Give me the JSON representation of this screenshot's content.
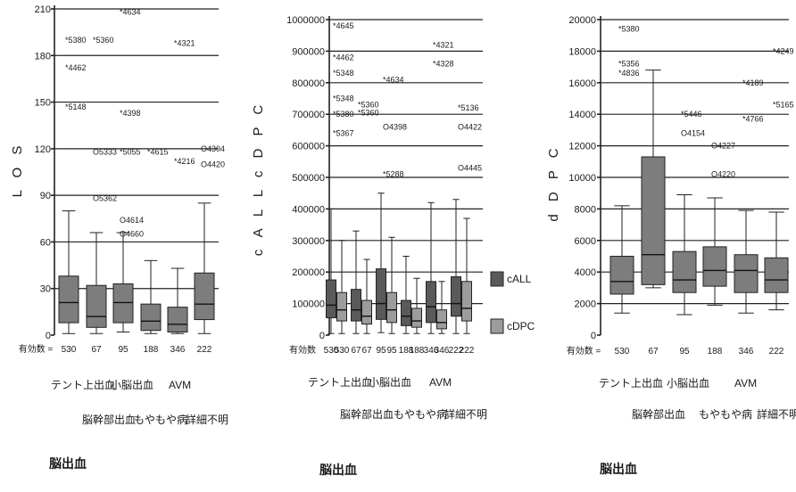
{
  "fill_colors": {
    "single": "#7d7d7d",
    "c_all": "#5a5a5a",
    "c_dpc": "#9c9c9c"
  },
  "chart_data": [
    {
      "type": "box",
      "ylabel": "L O S",
      "yticks": [
        0,
        30,
        60,
        90,
        120,
        150,
        180,
        210
      ],
      "ylim": [
        0,
        210
      ],
      "grid": "horizontal",
      "n_label": "有効数 =",
      "n_values": [
        "530",
        "67",
        "95",
        "188",
        "346",
        "222"
      ],
      "group_labels_row1": [
        "テント上出血",
        "小脳出血",
        "AVM"
      ],
      "group_labels_row2": [
        "脳幹部出血",
        "もやもや病",
        "詳細不明"
      ],
      "footer": "脳出血",
      "boxes": [
        {
          "min": 1,
          "q1": 8,
          "median": 21,
          "q3": 38,
          "max": 80
        },
        {
          "min": 1,
          "q1": 5,
          "median": 12,
          "q3": 32,
          "max": 66
        },
        {
          "min": 2,
          "q1": 8,
          "median": 21,
          "q3": 33,
          "max": 66
        },
        {
          "min": 1,
          "q1": 3,
          "median": 9,
          "q3": 20,
          "max": 48
        },
        {
          "min": 1,
          "q1": 2,
          "median": 7,
          "q3": 18,
          "max": 43
        },
        {
          "min": 1,
          "q1": 10,
          "median": 20,
          "q3": 40,
          "max": 85
        }
      ],
      "labeled_outliers": [
        {
          "cat": 0,
          "value": 190,
          "label": "*5380"
        },
        {
          "cat": 0,
          "value": 172,
          "label": "*4462"
        },
        {
          "cat": 0,
          "value": 147,
          "label": "*5148"
        },
        {
          "cat": 1,
          "value": 190,
          "label": "*5360"
        },
        {
          "cat": 1,
          "value": 118,
          "label": "O5333"
        },
        {
          "cat": 1,
          "value": 88,
          "label": "O5362"
        },
        {
          "cat": 2,
          "value": 208,
          "label": "*4634"
        },
        {
          "cat": 2,
          "value": 143,
          "label": "*4398"
        },
        {
          "cat": 2,
          "value": 118,
          "label": "*5055"
        },
        {
          "cat": 2,
          "value": 74,
          "label": "O4614"
        },
        {
          "cat": 2,
          "value": 65,
          "label": "O4660"
        },
        {
          "cat": 3,
          "value": 118,
          "label": "*4615"
        },
        {
          "cat": 4,
          "value": 188,
          "label": "*4321"
        },
        {
          "cat": 4,
          "value": 112,
          "label": "*4216"
        },
        {
          "cat": 5,
          "value": 120,
          "label": "O4304"
        },
        {
          "cat": 5,
          "value": 110,
          "label": "O4420"
        }
      ]
    },
    {
      "type": "box",
      "ylabel": "c A L L  c D P C",
      "yticks": [
        0,
        100000,
        200000,
        300000,
        400000,
        500000,
        600000,
        700000,
        800000,
        900000,
        1000000
      ],
      "ytick_labels": [
        "0",
        "100000",
        "200000",
        "300000",
        "400000",
        "500000",
        "600000",
        "700000",
        "800000",
        "900000",
        "1000000"
      ],
      "ylim": [
        0,
        1000000
      ],
      "grid": "horizontal",
      "n_label": "有効数",
      "n_values": [
        "530",
        "530",
        "67",
        "67",
        "95",
        "95",
        "188",
        "188",
        "346",
        "346",
        "222",
        "222"
      ],
      "group_labels_row1": [
        "テント上出血",
        "小脳出血",
        "AVM"
      ],
      "group_labels_row2": [
        "脳幹部出血",
        "もやもや病",
        "詳細不明"
      ],
      "legend": [
        {
          "name": "cALL",
          "color": "#5a5a5a"
        },
        {
          "name": "cDPC",
          "color": "#9c9c9c"
        }
      ],
      "legend_placement": "right",
      "footer": "脳出血",
      "series": [
        {
          "name": "cALL",
          "boxes": [
            {
              "min": 5000,
              "q1": 55000,
              "median": 95000,
              "q3": 175000,
              "max": 400000
            },
            {
              "min": 5000,
              "q1": 45000,
              "median": 80000,
              "q3": 145000,
              "max": 330000
            },
            {
              "min": 8000,
              "q1": 50000,
              "median": 100000,
              "q3": 210000,
              "max": 450000
            },
            {
              "min": 5000,
              "q1": 30000,
              "median": 60000,
              "q3": 110000,
              "max": 250000
            },
            {
              "min": 5000,
              "q1": 40000,
              "median": 90000,
              "q3": 170000,
              "max": 420000
            },
            {
              "min": 5000,
              "q1": 60000,
              "median": 100000,
              "q3": 185000,
              "max": 430000
            }
          ]
        },
        {
          "name": "cDPC",
          "boxes": [
            {
              "min": 5000,
              "q1": 45000,
              "median": 80000,
              "q3": 135000,
              "max": 300000
            },
            {
              "min": 5000,
              "q1": 35000,
              "median": 60000,
              "q3": 110000,
              "max": 240000
            },
            {
              "min": 5000,
              "q1": 40000,
              "median": 80000,
              "q3": 135000,
              "max": 310000
            },
            {
              "min": 5000,
              "q1": 25000,
              "median": 45000,
              "q3": 85000,
              "max": 180000
            },
            {
              "min": 5000,
              "q1": 20000,
              "median": 40000,
              "q3": 80000,
              "max": 170000
            },
            {
              "min": 5000,
              "q1": 45000,
              "median": 85000,
              "q3": 170000,
              "max": 370000
            }
          ]
        }
      ],
      "labeled_outliers": [
        {
          "cat": 0,
          "value": 980000,
          "label": "*4645"
        },
        {
          "cat": 0,
          "value": 880000,
          "label": "*4462"
        },
        {
          "cat": 0,
          "value": 830000,
          "label": "*5348"
        },
        {
          "cat": 0,
          "value": 750000,
          "label": "*5348"
        },
        {
          "cat": 0,
          "value": 700000,
          "label": "*5380"
        },
        {
          "cat": 0,
          "value": 640000,
          "label": "*5367"
        },
        {
          "cat": 1,
          "value": 730000,
          "label": "*5360"
        },
        {
          "cat": 1,
          "value": 705000,
          "label": "*5360"
        },
        {
          "cat": 2,
          "value": 810000,
          "label": "*4634"
        },
        {
          "cat": 2,
          "value": 660000,
          "label": "O4398"
        },
        {
          "cat": 2,
          "value": 510000,
          "label": "*5288"
        },
        {
          "cat": 4,
          "value": 920000,
          "label": "*4321"
        },
        {
          "cat": 4,
          "value": 860000,
          "label": "*4328"
        },
        {
          "cat": 5,
          "value": 720000,
          "label": "*5136"
        },
        {
          "cat": 5,
          "value": 660000,
          "label": "O4422"
        },
        {
          "cat": 5,
          "value": 530000,
          "label": "O4445"
        }
      ]
    },
    {
      "type": "box",
      "ylabel": "d D P C",
      "yticks": [
        0,
        2000,
        4000,
        6000,
        8000,
        10000,
        12000,
        14000,
        16000,
        18000,
        20000
      ],
      "ylim": [
        0,
        20000
      ],
      "grid": "horizontal",
      "n_label": "有効数 =",
      "n_values": [
        "530",
        "67",
        "95",
        "188",
        "346",
        "222"
      ],
      "group_labels_row1": [
        "テント上出血",
        "小脳出血",
        "AVM"
      ],
      "group_labels_row2": [
        "脳幹部出血",
        "もやもや病",
        "詳細不明"
      ],
      "footer": "脳出血",
      "boxes": [
        {
          "min": 1400,
          "q1": 2600,
          "median": 3400,
          "q3": 5000,
          "max": 8200
        },
        {
          "min": 3000,
          "q1": 3200,
          "median": 5100,
          "q3": 11300,
          "max": 16800
        },
        {
          "min": 1300,
          "q1": 2700,
          "median": 3500,
          "q3": 5300,
          "max": 8900
        },
        {
          "min": 1900,
          "q1": 3100,
          "median": 4100,
          "q3": 5600,
          "max": 8700
        },
        {
          "min": 1400,
          "q1": 2700,
          "median": 4100,
          "q3": 5100,
          "max": 7900
        },
        {
          "min": 1600,
          "q1": 2700,
          "median": 3500,
          "q3": 4900,
          "max": 7800
        }
      ],
      "labeled_outliers": [
        {
          "cat": 0,
          "value": 19400,
          "label": "*5380"
        },
        {
          "cat": 0,
          "value": 17200,
          "label": "*5356"
        },
        {
          "cat": 0,
          "value": 16600,
          "label": "*4836"
        },
        {
          "cat": 2,
          "value": 14000,
          "label": "*5446"
        },
        {
          "cat": 2,
          "value": 12800,
          "label": "O4154"
        },
        {
          "cat": 3,
          "value": 12000,
          "label": "O4227"
        },
        {
          "cat": 3,
          "value": 10200,
          "label": "O4220"
        },
        {
          "cat": 4,
          "value": 16000,
          "label": "*4189"
        },
        {
          "cat": 4,
          "value": 13700,
          "label": "*4766"
        },
        {
          "cat": 5,
          "value": 18000,
          "label": "*4249"
        },
        {
          "cat": 5,
          "value": 14600,
          "label": "*5165"
        }
      ]
    }
  ]
}
